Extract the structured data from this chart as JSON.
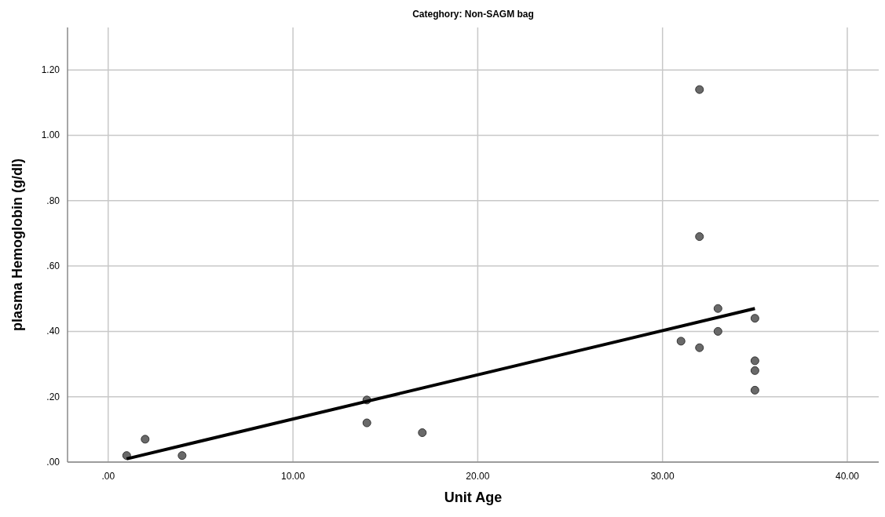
{
  "chart_data": {
    "type": "scatter",
    "title": "Categhory: Non-SAGM bag",
    "xlabel": "Unit Age",
    "ylabel": "plasma Hemoglobin  (g/dl)",
    "xlim": [
      -2.2,
      41.7
    ],
    "ylim": [
      0,
      1.33
    ],
    "xticks": [
      {
        "value": 0,
        "label": ".00"
      },
      {
        "value": 10,
        "label": "10.00"
      },
      {
        "value": 20,
        "label": "20.00"
      },
      {
        "value": 30,
        "label": "30.00"
      },
      {
        "value": 40,
        "label": "40.00"
      }
    ],
    "yticks": [
      {
        "value": 0,
        "label": ".00"
      },
      {
        "value": 0.2,
        "label": ".20"
      },
      {
        "value": 0.4,
        "label": ".40"
      },
      {
        "value": 0.6,
        "label": ".60"
      },
      {
        "value": 0.8,
        "label": ".80"
      },
      {
        "value": 1.0,
        "label": "1.00"
      },
      {
        "value": 1.2,
        "label": "1.20"
      }
    ],
    "grid": true,
    "series": [
      {
        "marker": "circle",
        "color": "#696969",
        "x": [
          1,
          2,
          4,
          14,
          14,
          17,
          31,
          32,
          32,
          32,
          33,
          33,
          35,
          35,
          35,
          35
        ],
        "values": [
          0.02,
          0.07,
          0.02,
          0.19,
          0.12,
          0.09,
          0.37,
          1.14,
          0.69,
          0.35,
          0.47,
          0.4,
          0.44,
          0.31,
          0.28,
          0.22
        ]
      },
      {
        "type": "line",
        "color": "#000000",
        "x": [
          1,
          35
        ],
        "values": [
          0.01,
          0.47
        ]
      }
    ]
  }
}
